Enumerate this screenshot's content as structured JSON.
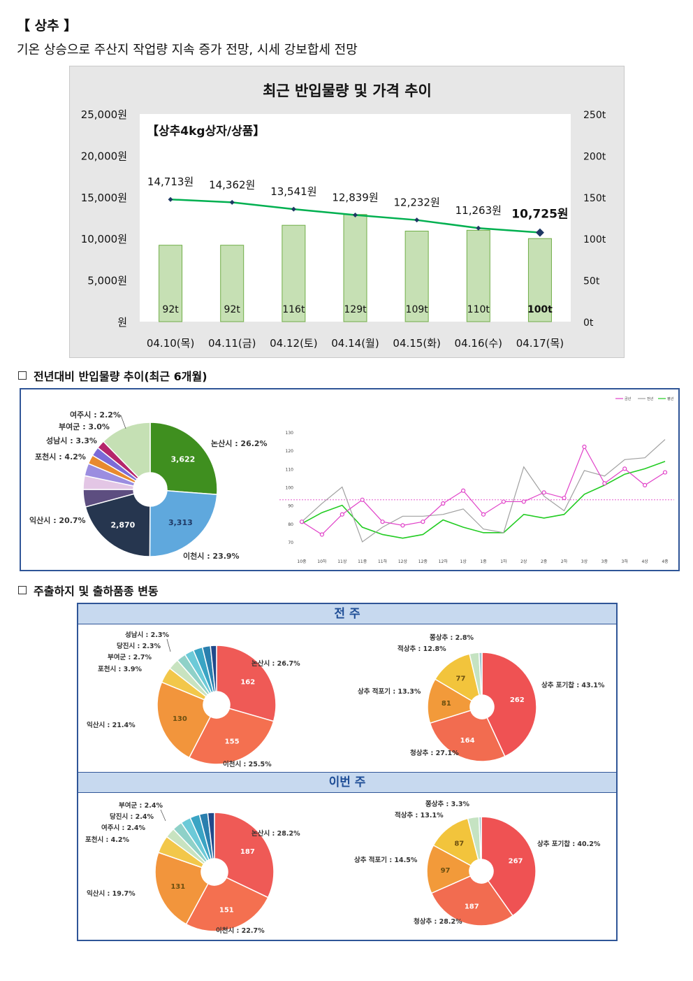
{
  "header": {
    "title": "【 상추 】",
    "subtitle": "기온 상승으로 주산지 작업량 지속 증가 전망, 시세 강보합세 전망"
  },
  "section1": {
    "title": "전년대비 반입물량 추이(최근 6개월)"
  },
  "section2": {
    "title": "주출하지 및 출하품종 변동",
    "prev_label": "전 주",
    "this_label": "이번 주"
  },
  "chart_data": [
    {
      "type": "bar",
      "title": "최근 반입물량 및 가격 추이",
      "subtitle": "【상추4kg상자/상품】",
      "categories": [
        "04.10(목)",
        "04.11(금)",
        "04.12(토)",
        "04.14(월)",
        "04.15(화)",
        "04.16(수)",
        "04.17(목)"
      ],
      "series": [
        {
          "kind": "bar",
          "axis": "right",
          "values": [
            92,
            92,
            116,
            129,
            109,
            110,
            100
          ],
          "labels": [
            "92t",
            "92t",
            "116t",
            "129t",
            "109t",
            "110t",
            "100t"
          ]
        },
        {
          "kind": "line",
          "axis": "left",
          "values": [
            14713,
            14362,
            13541,
            12839,
            12232,
            11263,
            10725
          ],
          "labels": [
            "14,713원",
            "14,362원",
            "13,541원",
            "12,839원",
            "12,232원",
            "11,263원",
            "10,725원"
          ]
        }
      ],
      "left_ticks": [
        "25,000원",
        "20,000원",
        "15,000원",
        "10,000원",
        "5,000원",
        "원"
      ],
      "right_ticks": [
        "250t",
        "200t",
        "150t",
        "100t",
        "50t",
        "0t"
      ],
      "ylim_left": [
        0,
        25000
      ],
      "ylim_right": [
        0,
        250
      ],
      "colors": {
        "bar": "#c6e0b4",
        "bar_border": "#70ad47",
        "line": "#00b050",
        "marker": "#1f3864"
      }
    },
    {
      "type": "pie",
      "slices": [
        {
          "label": "논산시 : 26.2%",
          "value": 26.2,
          "inner": "3,622",
          "color": "#3f8f1f"
        },
        {
          "label": "이천시 : 23.9%",
          "value": 23.9,
          "inner": "3,313",
          "color": "#5fa8dd"
        },
        {
          "label": "익산시 : 20.7%",
          "value": 20.7,
          "inner": "2,870",
          "color": "#26364f"
        },
        {
          "label": "포천시 : 4.2%",
          "value": 4.2,
          "inner": "",
          "color": "#5d4e80"
        },
        {
          "label": "성남시 : 3.3%",
          "value": 3.3,
          "inner": "",
          "color": "#e3c6e5"
        },
        {
          "label": "부여군 : 3.0%",
          "value": 3.0,
          "inner": "",
          "color": "#9b8de0"
        },
        {
          "label": "여주시 : 2.2%",
          "value": 2.2,
          "inner": "",
          "color": "#e88a2e"
        },
        {
          "label": "",
          "value": 2.2,
          "inner": "",
          "color": "#7b6bd8"
        },
        {
          "label": "",
          "value": 2.0,
          "inner": "",
          "color": "#b5266b"
        },
        {
          "label": "",
          "value": 12.3,
          "inner": "",
          "color": "#c5e0b4"
        }
      ]
    },
    {
      "type": "line",
      "legend": [
        "금년",
        "전년",
        "평년"
      ],
      "x": [
        "10중",
        "10하",
        "11상",
        "11중",
        "11하",
        "12상",
        "12중",
        "12하",
        "1상",
        "1중",
        "1하",
        "2상",
        "2중",
        "2하",
        "3상",
        "3중",
        "3하",
        "4상",
        "4중"
      ],
      "yticks": [
        "130",
        "120",
        "110",
        "100",
        "90",
        "80",
        "70"
      ],
      "ylim": [
        65,
        135
      ],
      "ref_line": 93,
      "series": [
        {
          "name": "금년",
          "color": "#e040c8",
          "values": [
            81,
            74,
            85,
            93,
            81,
            79,
            81,
            91,
            98,
            85,
            92,
            92,
            97,
            94,
            122,
            102,
            110,
            101,
            108
          ]
        },
        {
          "name": "전년",
          "color": "#a0a0a0",
          "values": [
            81,
            91,
            100,
            70,
            78,
            84,
            84,
            85,
            88,
            77,
            75,
            111,
            95,
            87,
            109,
            106,
            115,
            116,
            126
          ]
        },
        {
          "name": "평년",
          "color": "#22cc22",
          "values": [
            80,
            86,
            90,
            78,
            74,
            72,
            74,
            82,
            78,
            75,
            75,
            85,
            83,
            85,
            96,
            101,
            107,
            110,
            114
          ]
        }
      ]
    },
    {
      "type": "pie",
      "group": "prev-region",
      "slices": [
        {
          "label": "논산시 : 26.7%",
          "value": 26.7,
          "inner": "162",
          "color": "#ef5a56"
        },
        {
          "label": "이천시 : 25.5%",
          "value": 25.5,
          "inner": "155",
          "color": "#f47050"
        },
        {
          "label": "익산시 : 21.4%",
          "value": 21.4,
          "inner": "130",
          "color": "#f2953c"
        },
        {
          "label": "포천시 : 3.9%",
          "value": 3.9,
          "inner": "",
          "color": "#f2c74a"
        },
        {
          "label": "부여군 : 2.7%",
          "value": 2.7,
          "inner": "",
          "color": "#c8e3c0"
        },
        {
          "label": "당진시 : 2.3%",
          "value": 2.3,
          "inner": "",
          "color": "#8fd1c8"
        },
        {
          "label": "성남시 : 2.3%",
          "value": 2.3,
          "inner": "",
          "color": "#6ccad8"
        },
        {
          "label": "",
          "value": 2.3,
          "inner": "",
          "color": "#3aa4c4"
        },
        {
          "label": "",
          "value": 2.0,
          "inner": "",
          "color": "#2a7fae"
        },
        {
          "label": "",
          "value": 1.5,
          "inner": "",
          "color": "#214a8b"
        }
      ]
    },
    {
      "type": "pie",
      "group": "prev-variety",
      "slices": [
        {
          "label": "상추 포기찹 : 43.1%",
          "value": 43.1,
          "inner": "262",
          "color": "#ef5253"
        },
        {
          "label": "청상추 : 27.1%",
          "value": 27.1,
          "inner": "164",
          "color": "#f26c50"
        },
        {
          "label": "상추 적포기 : 13.3%",
          "value": 13.3,
          "inner": "81",
          "color": "#f29a3a"
        },
        {
          "label": "적상추 : 12.8%",
          "value": 12.8,
          "inner": "77",
          "color": "#f2c43c"
        },
        {
          "label": "쫑상추 : 2.8%",
          "value": 2.8,
          "inner": "",
          "color": "#c5e3c2"
        },
        {
          "label": "",
          "value": 0.9,
          "inner": "",
          "color": "#a0c8d0"
        }
      ]
    },
    {
      "type": "pie",
      "group": "this-region",
      "slices": [
        {
          "label": "논산시 : 28.2%",
          "value": 28.2,
          "inner": "187",
          "color": "#ef5a56"
        },
        {
          "label": "이천시 : 22.7%",
          "value": 22.7,
          "inner": "151",
          "color": "#f47050"
        },
        {
          "label": "익산시 : 19.7%",
          "value": 19.7,
          "inner": "131",
          "color": "#f2953c"
        },
        {
          "label": "포천시 : 4.2%",
          "value": 4.2,
          "inner": "",
          "color": "#f2c74a"
        },
        {
          "label": "여주시 : 2.4%",
          "value": 2.4,
          "inner": "",
          "color": "#c8e3c0"
        },
        {
          "label": "당진시 : 2.4%",
          "value": 2.4,
          "inner": "",
          "color": "#8fd1c8"
        },
        {
          "label": "부여군 : 2.4%",
          "value": 2.4,
          "inner": "",
          "color": "#6ccad8"
        },
        {
          "label": "",
          "value": 2.3,
          "inner": "",
          "color": "#3aa4c4"
        },
        {
          "label": "",
          "value": 2.0,
          "inner": "",
          "color": "#2a7fae"
        },
        {
          "label": "",
          "value": 1.6,
          "inner": "",
          "color": "#214a8b"
        }
      ]
    },
    {
      "type": "pie",
      "group": "this-variety",
      "slices": [
        {
          "label": "상추 포기찹 : 40.2%",
          "value": 40.2,
          "inner": "267",
          "color": "#ef5253"
        },
        {
          "label": "청상추 : 28.2%",
          "value": 28.2,
          "inner": "187",
          "color": "#f26c50"
        },
        {
          "label": "상추 적포기 : 14.5%",
          "value": 14.5,
          "inner": "97",
          "color": "#f29a3a"
        },
        {
          "label": "적상추 : 13.1%",
          "value": 13.1,
          "inner": "87",
          "color": "#f2c43c"
        },
        {
          "label": "쫑상추 : 3.3%",
          "value": 3.3,
          "inner": "",
          "color": "#c5e3c2"
        },
        {
          "label": "",
          "value": 0.7,
          "inner": "",
          "color": "#a0c8d0"
        }
      ]
    }
  ]
}
